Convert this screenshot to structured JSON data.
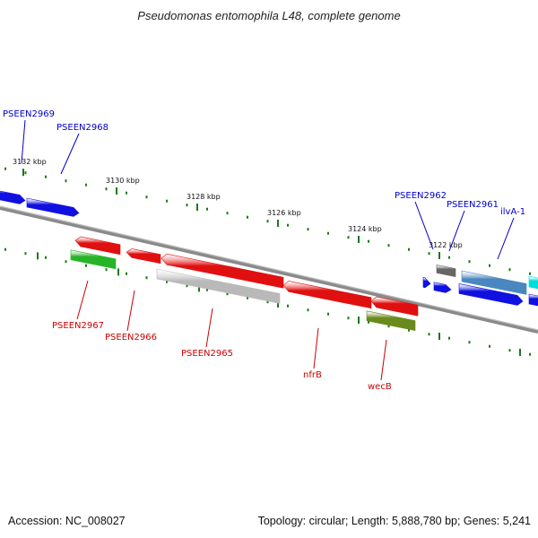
{
  "title": "Pseudomonas entomophila L48, complete genome",
  "footer": {
    "accession": "Accession: NC_008027",
    "summary": "Topology: circular; Length: 5,888,780 bp; Genes: 5,241"
  },
  "colors": {
    "forward_label": "#0000c8",
    "reverse_label": "#cc0000",
    "tick": "#1a7a1a",
    "backbone": "#8a8a8a"
  },
  "ticks": [
    {
      "label": "3132 kbp"
    },
    {
      "label": "3130 kbp"
    },
    {
      "label": "3128 kbp"
    },
    {
      "label": "3126 kbp"
    },
    {
      "label": "3124 kbp"
    },
    {
      "label": "3122 kbp"
    }
  ],
  "forward_genes": [
    {
      "label": "PSEEN2969",
      "color": "#1010e0"
    },
    {
      "label": "PSEEN2968",
      "color": "#1010e0"
    },
    {
      "label": "PSEEN2962",
      "color": "#666666"
    },
    {
      "label": "PSEEN2961",
      "color": "#1010e0"
    },
    {
      "label": "ilvA-1",
      "color": "#4a86c0"
    }
  ],
  "reverse_genes": [
    {
      "label": "PSEEN2967",
      "color": "#e01010"
    },
    {
      "label": "PSEEN2966",
      "color": "#e01010"
    },
    {
      "label": "PSEEN2965",
      "color": "#e01010"
    },
    {
      "label": "nfrB",
      "color": "#e01010"
    },
    {
      "label": "wecB",
      "color": "#e01010"
    }
  ]
}
